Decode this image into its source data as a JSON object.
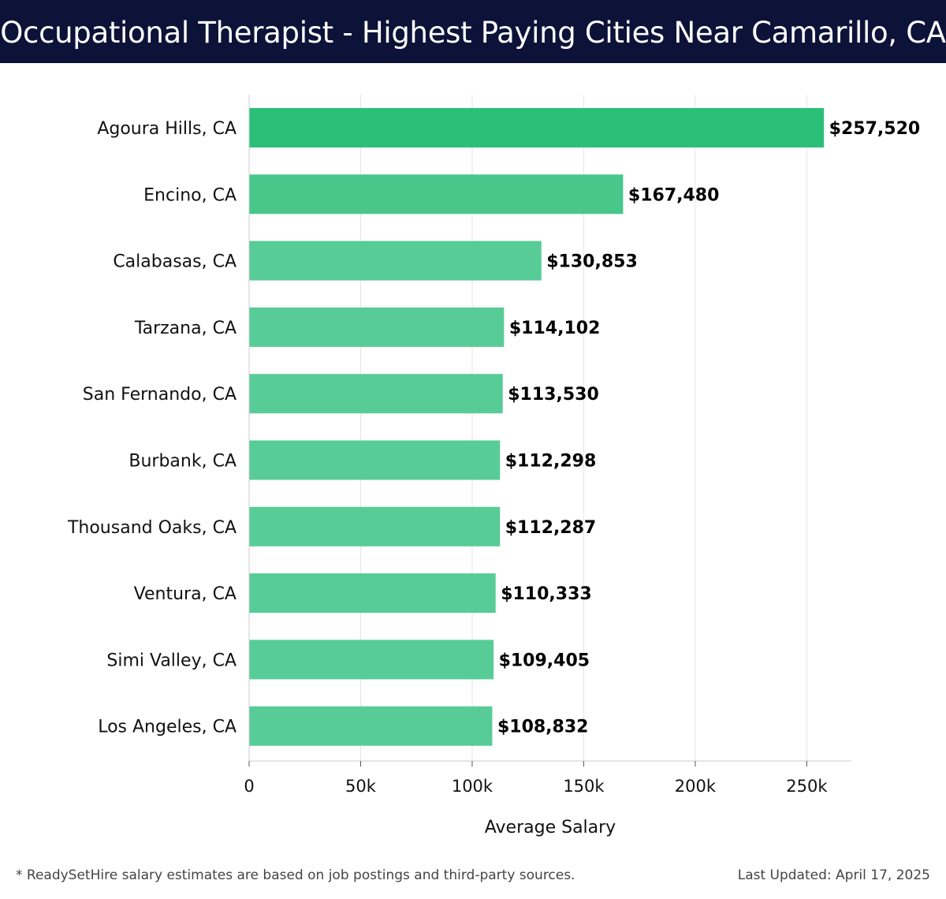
{
  "header": {
    "title": "Occupational Therapist - Highest Paying Cities Near Camarillo, CA"
  },
  "chart_data": {
    "type": "bar",
    "orientation": "horizontal",
    "title": "Occupational Therapist - Highest Paying Cities Near Camarillo, CA",
    "xlabel": "Average Salary",
    "ylabel": "",
    "xlim": [
      0,
      270000
    ],
    "xticks": [
      0,
      50000,
      100000,
      150000,
      200000,
      250000
    ],
    "xtick_labels": [
      "0",
      "50k",
      "100k",
      "150k",
      "200k",
      "250k"
    ],
    "grid": true,
    "categories": [
      "Agoura Hills, CA",
      "Encino, CA",
      "Calabasas, CA",
      "Tarzana, CA",
      "San Fernando, CA",
      "Burbank, CA",
      "Thousand Oaks, CA",
      "Ventura, CA",
      "Simi Valley, CA",
      "Los Angeles, CA"
    ],
    "values": [
      257520,
      167480,
      130853,
      114102,
      113530,
      112298,
      112287,
      110333,
      109405,
      108832
    ],
    "value_labels": [
      "$257,520",
      "$167,480",
      "$130,853",
      "$114,102",
      "$113,530",
      "$112,298",
      "$112,287",
      "$110,333",
      "$109,405",
      "$108,832"
    ],
    "colors": {
      "top_bar": "#2bbf78",
      "second_bar": "#48c78b",
      "other_bars": "#58cc96",
      "grid": "#e4e4e4",
      "axis": "#cccccc"
    }
  },
  "footer": {
    "note": "* ReadySetHire salary estimates are based on job postings and third-party sources.",
    "updated": "Last Updated: April 17, 2025"
  }
}
